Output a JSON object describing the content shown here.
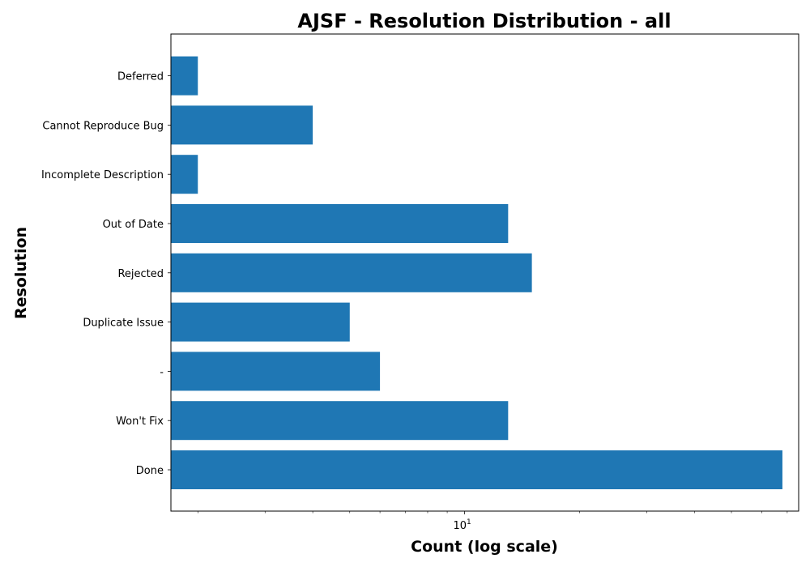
{
  "chart_data": {
    "type": "bar",
    "orientation": "horizontal",
    "title": "AJSF - Resolution Distribution - all",
    "xlabel": "Count (log scale)",
    "ylabel": "Resolution",
    "xscale": "log",
    "xlim": [
      1.7,
      75
    ],
    "x_ticks": [
      {
        "base": "10",
        "exp": "1",
        "value": 10
      }
    ],
    "categories": [
      "Done",
      "Won't Fix",
      "-",
      "Duplicate Issue",
      "Rejected",
      "Out of Date",
      "Incomplete Description",
      "Cannot Reproduce Bug",
      "Deferred"
    ],
    "values": [
      68,
      13,
      6,
      5,
      15,
      13,
      2,
      4,
      2
    ],
    "bar_color": "#1f77b4",
    "grid": false,
    "legend": "none"
  }
}
